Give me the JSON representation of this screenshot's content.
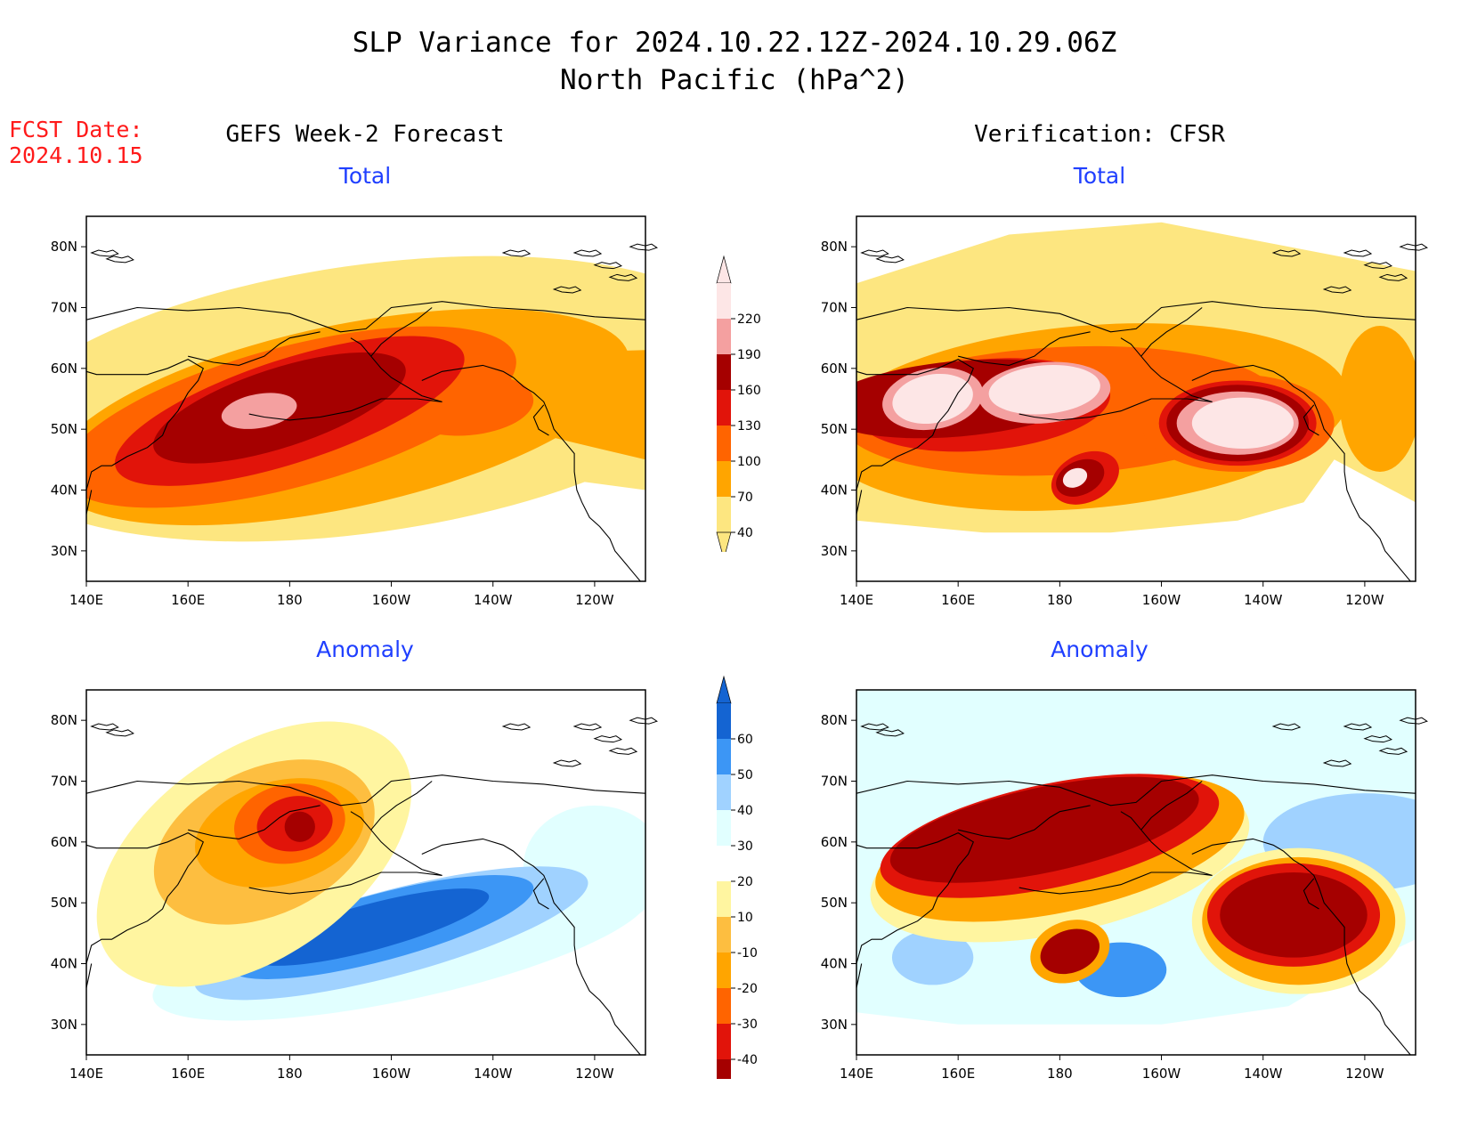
{
  "title": {
    "line1": "SLP Variance for 2024.10.22.12Z-2024.10.29.06Z",
    "line2": "North Pacific (hPa^2)"
  },
  "fcst_date": {
    "label": "FCST Date:",
    "value": "2024.10.15"
  },
  "columns": {
    "left": "GEFS Week-2 Forecast",
    "right": "Verification: CFSR"
  },
  "panel_titles": {
    "total": "Total",
    "anomaly": "Anomaly"
  },
  "axes": {
    "lon_ticks": [
      "140E",
      "160E",
      "180",
      "160W",
      "140W",
      "120W"
    ],
    "lat_ticks": [
      "80N",
      "70N",
      "60N",
      "50N",
      "40N",
      "30N"
    ]
  },
  "colorbars": {
    "total": {
      "levels": [
        "40",
        "70",
        "100",
        "130",
        "160",
        "190",
        "220"
      ],
      "colors": [
        "#fde680",
        "#ffa500",
        "#ff6400",
        "#e1140a",
        "#a50000",
        "#f4a0a0",
        "#fde6e6"
      ]
    },
    "anomaly": {
      "levels": [
        "60",
        "50",
        "40",
        "30",
        "20",
        "10",
        "-10",
        "-20",
        "-30",
        "-40"
      ],
      "colors": [
        "#a50000",
        "#e1140a",
        "#ff6400",
        "#ffa500",
        "#fdbe40",
        "#fff5a0",
        "#ffffff",
        "#e1ffff",
        "#a0d2ff",
        "#3c96f5",
        "#1464d2"
      ]
    }
  },
  "colors": {
    "title_red": "#ff1a1a",
    "panel_title_blue": "#1f3fff",
    "total_fills": [
      "#fde680",
      "#ffa500",
      "#ff6400",
      "#e1140a",
      "#a50000",
      "#f4a0a0",
      "#fde6e6"
    ],
    "pos_fills": [
      "#fff5a0",
      "#fdbe40",
      "#ffa500",
      "#ff6400",
      "#e1140a",
      "#a50000"
    ],
    "neg_fills": [
      "#e1ffff",
      "#a0d2ff",
      "#3c96f5",
      "#1464d2"
    ]
  }
}
